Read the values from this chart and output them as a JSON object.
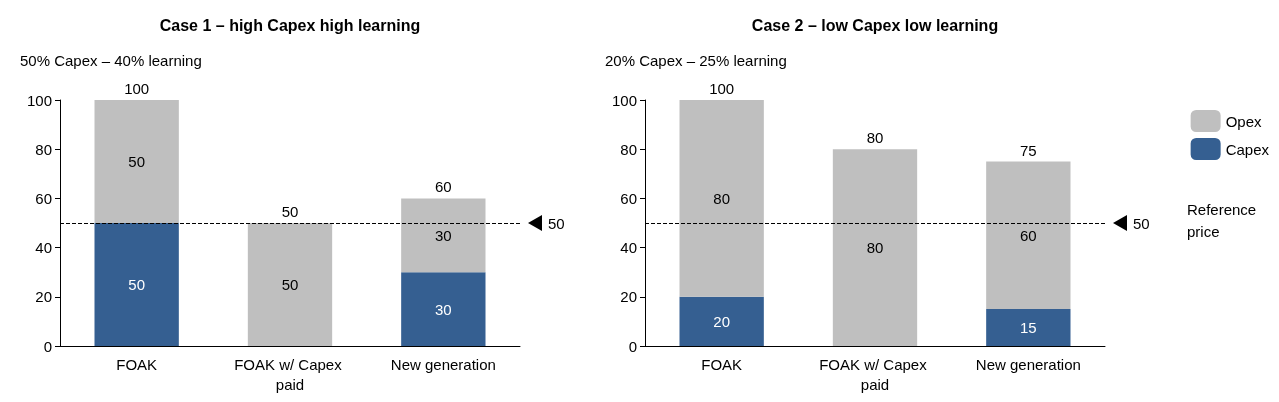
{
  "chart_data": [
    {
      "type": "bar",
      "stacked": true,
      "title": "Case 1 – high Capex high learning",
      "subtitle": "50% Capex – 40% learning",
      "categories": [
        "FOAK",
        "FOAK w/ Capex paid",
        "New generation"
      ],
      "series": [
        {
          "color": "#355f91",
          "values": [
            50,
            null,
            30
          ]
        },
        {
          "color": "#bfbfbf",
          "values": [
            50,
            50,
            30
          ]
        }
      ],
      "ylim": [
        0,
        100
      ],
      "yticks": [
        0,
        20,
        40,
        60,
        80,
        100
      ],
      "data_labels": true,
      "totals": [
        "100",
        "50",
        "60"
      ],
      "ref_lines": [
        {
          "axis": "y",
          "value": 50,
          "label": "50",
          "color": "#000000",
          "line_style": "dashed"
        }
      ],
      "legend": false,
      "grid": false
    },
    {
      "type": "bar",
      "stacked": true,
      "title": "Case 2 – low Capex low learning",
      "subtitle": "20% Capex – 25% learning",
      "categories": [
        "FOAK",
        "FOAK w/ Capex paid",
        "New generation"
      ],
      "series": [
        {
          "name": "Capex",
          "color": "#355f91",
          "values": [
            20,
            null,
            15
          ]
        },
        {
          "name": "Opex",
          "color": "#bfbfbf",
          "values": [
            80,
            80,
            60
          ]
        }
      ],
      "ylim": [
        0,
        100
      ],
      "yticks": [
        0,
        20,
        40,
        60,
        80,
        100
      ],
      "data_labels": true,
      "totals": [
        "100",
        "80",
        "75"
      ],
      "ref_lines": [
        {
          "axis": "y",
          "value": 50,
          "label": "50",
          "color": "#000000",
          "line_style": "dashed"
        }
      ],
      "annotations": [
        "Reference price"
      ],
      "legend": "right",
      "grid": false
    }
  ]
}
